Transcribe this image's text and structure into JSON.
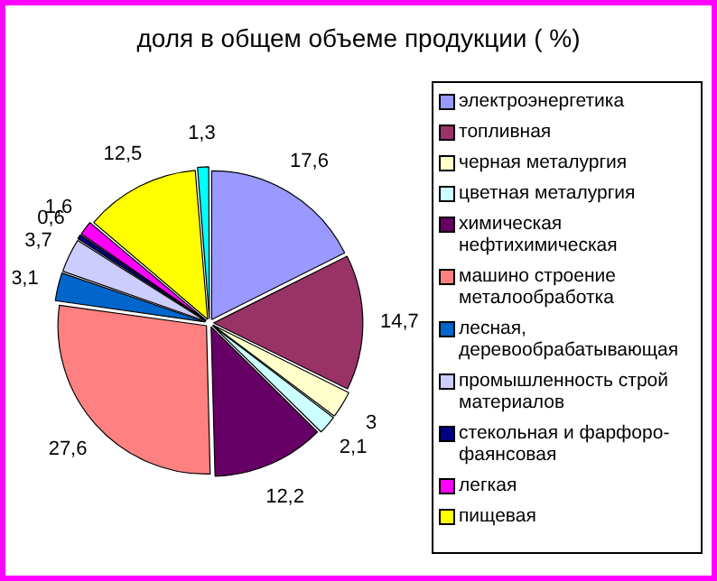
{
  "chart_data": {
    "type": "pie",
    "title": "доля в общем объеме продукции ( %)",
    "categories": [
      "электроэнергетика",
      "топливная",
      "черная металургия",
      "цветная металургия",
      "химическая нефтихимическая",
      "машино строение металообработка",
      "лесная, деревообрабатывающая",
      "промышленность строй материалов",
      "стекольная и фарфоро-фаянсовая",
      "легкая",
      "пищевая",
      null
    ],
    "values": [
      17.6,
      14.7,
      3,
      2.1,
      12.2,
      27.6,
      3.1,
      3.7,
      0.6,
      1.6,
      12.5,
      1.3
    ],
    "value_labels": [
      "17,6",
      "14,7",
      "3",
      "2,1",
      "12,2",
      "27,6",
      "3,1",
      "3,7",
      "0,6",
      "1,6",
      "12,5",
      "1,3"
    ],
    "colors": [
      "#9999ff",
      "#993366",
      "#ffffcc",
      "#ccffff",
      "#660066",
      "#ff8080",
      "#0066cc",
      "#ccccff",
      "#000080",
      "#ff00ff",
      "#ffff00",
      "#00ffff"
    ],
    "legend": "right"
  }
}
